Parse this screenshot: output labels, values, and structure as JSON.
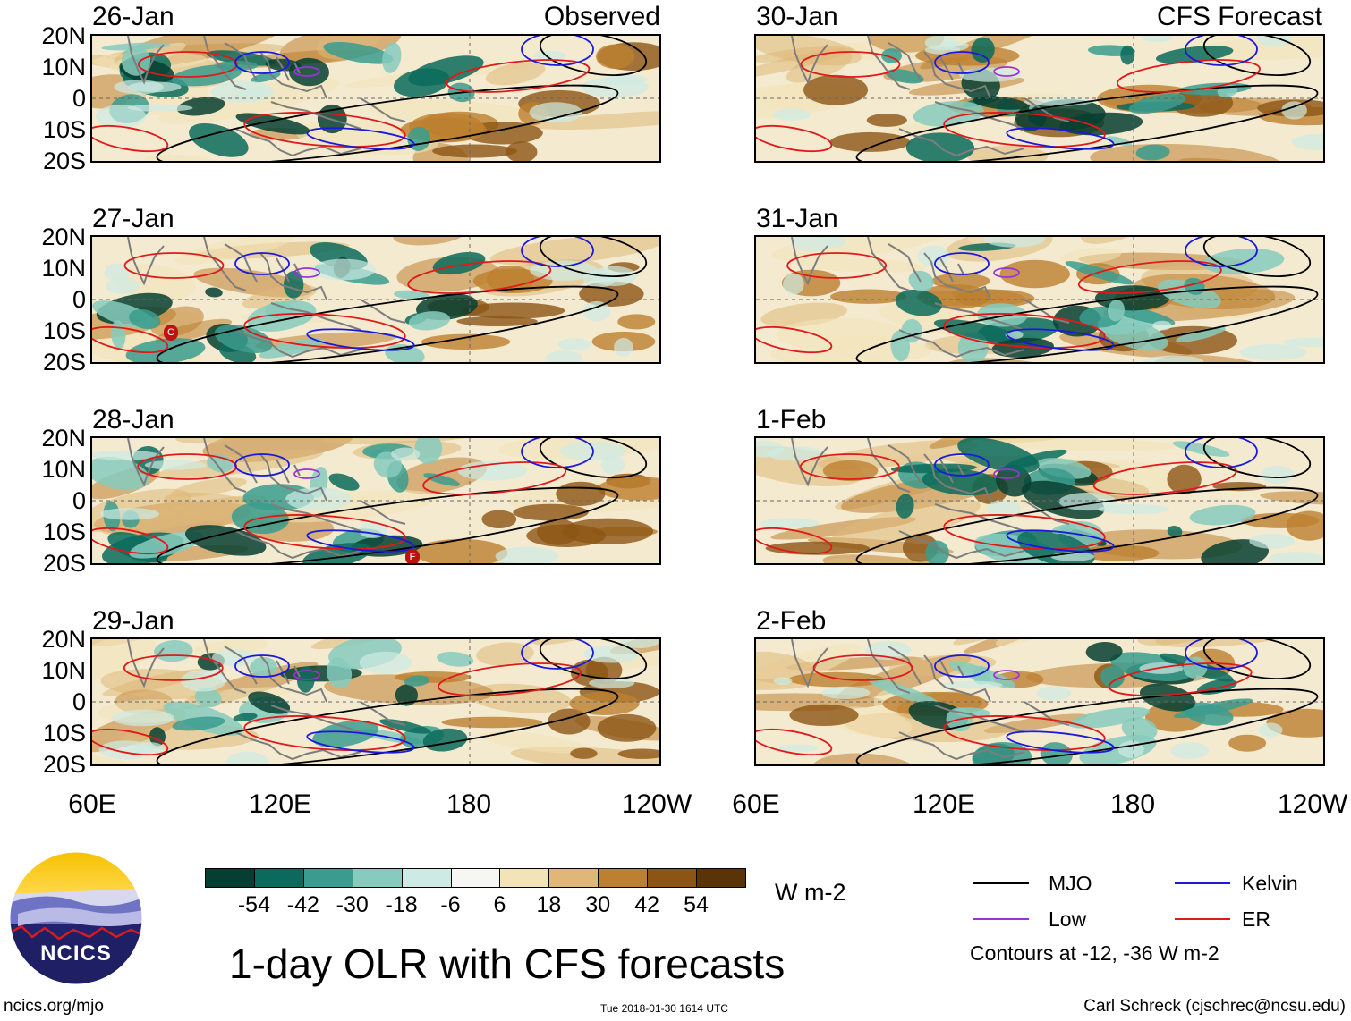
{
  "headers": {
    "observed": "Observed",
    "forecast": "CFS Forecast"
  },
  "panels_observed": [
    {
      "date": "26-Jan"
    },
    {
      "date": "27-Jan"
    },
    {
      "date": "28-Jan"
    },
    {
      "date": "29-Jan"
    }
  ],
  "panels_forecast": [
    {
      "date": "30-Jan"
    },
    {
      "date": "31-Jan"
    },
    {
      "date": "1-Feb"
    },
    {
      "date": "2-Feb"
    }
  ],
  "lat_labels": [
    "20N",
    "10N",
    "0",
    "10S",
    "20S"
  ],
  "lon_labels": [
    "60E",
    "120E",
    "180",
    "120W"
  ],
  "colorbar": {
    "unit": "W m-2",
    "labels": [
      "-54",
      "-42",
      "-30",
      "-18",
      "-6",
      "6",
      "18",
      "30",
      "42",
      "54"
    ],
    "colors": [
      "#063f31",
      "#0a6b5c",
      "#3a9c8e",
      "#86cbbd",
      "#cdebe4",
      "#f6f6f2",
      "#f2e3b8",
      "#dfb878",
      "#bd8030",
      "#8c5514",
      "#5a3409"
    ]
  },
  "title": "1-day OLR with CFS forecasts",
  "legend": {
    "items": [
      {
        "label": "MJO",
        "color": "#000000"
      },
      {
        "label": "Kelvin",
        "color": "#1a1adc"
      },
      {
        "label": "Low",
        "color": "#9a33d6"
      },
      {
        "label": "ER",
        "color": "#e01a1a"
      }
    ],
    "note": "Contours at -12, -36 W m-2"
  },
  "footer": {
    "left": "ncics.org/mjo",
    "center": "Tue 2018-01-30 1614 UTC",
    "right": "Carl Schreck (cjschrec@ncsu.edu)"
  },
  "logo": {
    "text": "NCICS"
  },
  "storm_markers": [
    "C",
    "F"
  ]
}
